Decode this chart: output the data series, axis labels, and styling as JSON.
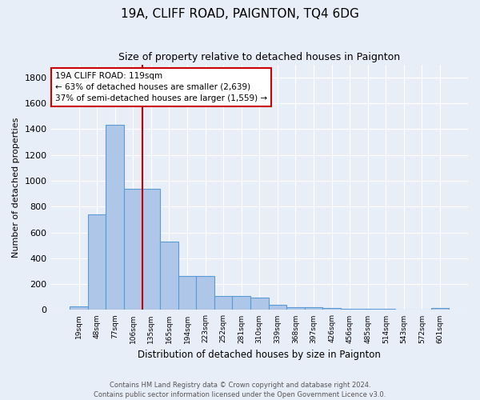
{
  "title": "19A, CLIFF ROAD, PAIGNTON, TQ4 6DG",
  "subtitle": "Size of property relative to detached houses in Paignton",
  "xlabel": "Distribution of detached houses by size in Paignton",
  "ylabel": "Number of detached properties",
  "bar_labels": [
    "19sqm",
    "48sqm",
    "77sqm",
    "106sqm",
    "135sqm",
    "165sqm",
    "194sqm",
    "223sqm",
    "252sqm",
    "281sqm",
    "310sqm",
    "339sqm",
    "368sqm",
    "397sqm",
    "426sqm",
    "456sqm",
    "485sqm",
    "514sqm",
    "543sqm",
    "572sqm",
    "601sqm"
  ],
  "bar_values": [
    25,
    740,
    1430,
    940,
    940,
    530,
    265,
    265,
    110,
    110,
    95,
    40,
    20,
    20,
    15,
    10,
    10,
    10,
    5,
    5,
    15
  ],
  "bar_color": "#aec6e8",
  "bar_edge_color": "#5b9bd5",
  "vline_color": "#cc0000",
  "ylim": [
    0,
    1900
  ],
  "yticks": [
    0,
    200,
    400,
    600,
    800,
    1000,
    1200,
    1400,
    1600,
    1800
  ],
  "annotation_title": "19A CLIFF ROAD: 119sqm",
  "annotation_line1": "← 63% of detached houses are smaller (2,639)",
  "annotation_line2": "37% of semi-detached houses are larger (1,559) →",
  "footer1": "Contains HM Land Registry data © Crown copyright and database right 2024.",
  "footer2": "Contains public sector information licensed under the Open Government Licence v3.0.",
  "bg_color": "#e8eef8",
  "plot_bg_color": "#e8eef8"
}
